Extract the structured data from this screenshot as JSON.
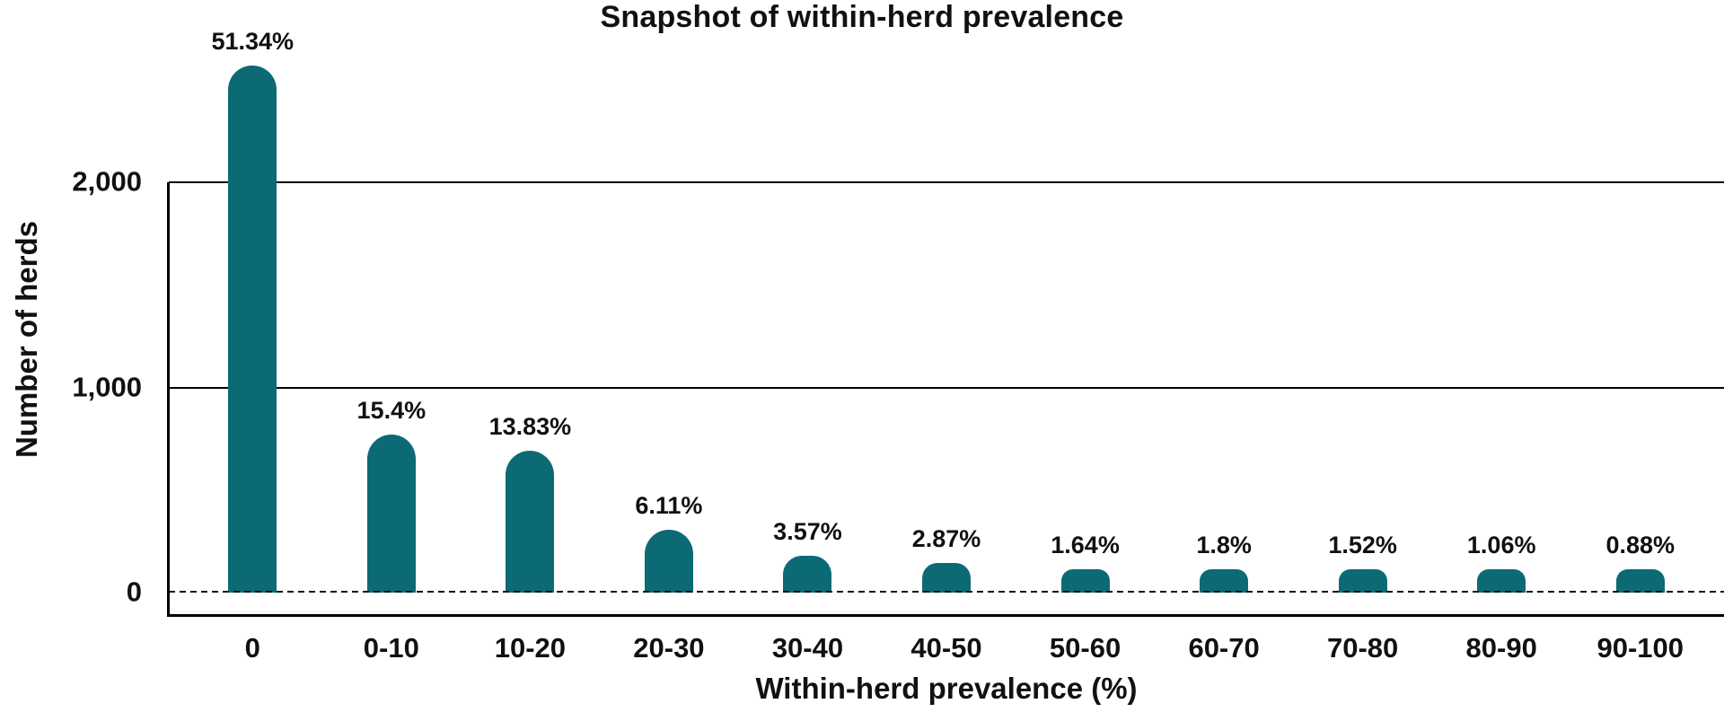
{
  "chart_data": {
    "type": "bar",
    "title": "Snapshot of within-herd prevalence",
    "xlabel": "Within-herd prevalence (%)",
    "ylabel": "Number of herds",
    "categories": [
      "0",
      "0-10",
      "10-20",
      "20-30",
      "30-40",
      "40-50",
      "50-60",
      "60-70",
      "70-80",
      "80-90",
      "90-100"
    ],
    "series": [
      {
        "name": "Herds",
        "percent_labels": [
          "51.34%",
          "15.4%",
          "13.83%",
          "6.11%",
          "3.57%",
          "2.87%",
          "1.64%",
          "1.8%",
          "1.52%",
          "1.06%",
          "0.88%"
        ],
        "values": [
          2567,
          770,
          691,
          305,
          178,
          143,
          82,
          90,
          76,
          53,
          44
        ]
      }
    ],
    "values_note": "Herd counts estimated from bar heights against the y-axis; percent data labels are shown on the chart",
    "y_ticks": [
      {
        "label": "0",
        "value": 0
      },
      {
        "label": "1,000",
        "value": 1000
      },
      {
        "label": "2,000",
        "value": 2000
      }
    ],
    "ylim": [
      0,
      2600
    ],
    "gridlines": {
      "solid_at": [
        1000,
        2000
      ],
      "dashed_at": [
        0
      ]
    },
    "legend": "none",
    "colors": {
      "bar": "#0c6a75",
      "text": "#111111",
      "background": "#ffffff"
    }
  }
}
